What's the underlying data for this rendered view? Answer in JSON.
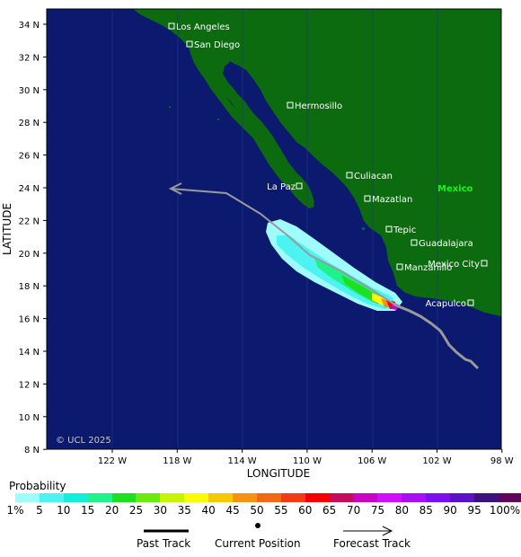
{
  "map": {
    "credit": "© UCL 2025",
    "country_label": "Mexico",
    "x_axis_title": "LONGITUDE",
    "y_axis_title": "LATITUDE",
    "lon_ticks": [
      "122 W",
      "118 W",
      "114 W",
      "110 W",
      "106 W",
      "102 W",
      "98 W"
    ],
    "lat_ticks": [
      "34 N",
      "32 N",
      "30 N",
      "28 N",
      "26 N",
      "24 N",
      "22 N",
      "20 N",
      "18 N",
      "16 N",
      "14 N",
      "12 N",
      "10 N",
      "8 N"
    ],
    "cities": [
      {
        "name": "Los Angeles"
      },
      {
        "name": "San Diego"
      },
      {
        "name": "Hermosillo"
      },
      {
        "name": "Culiacan"
      },
      {
        "name": "La Paz"
      },
      {
        "name": "Mazatlan"
      },
      {
        "name": "Tepic"
      },
      {
        "name": "Guadalajara"
      },
      {
        "name": "Mexico City"
      },
      {
        "name": "Manzanillo"
      },
      {
        "name": "Acapulco"
      }
    ],
    "colors": {
      "ocean": "#0b1a6e",
      "land": "#0d6b0f",
      "past_track": "#9a9a9a",
      "grid": "#3a4b96"
    }
  },
  "legend": {
    "title": "Probability",
    "colors": [
      "#9ffcfb",
      "#4df3f0",
      "#13eddb",
      "#1ef28a",
      "#1fe01f",
      "#6bea10",
      "#c6f404",
      "#fbfb04",
      "#f6c806",
      "#f49212",
      "#f36814",
      "#f33b13",
      "#f50000",
      "#c50b5b",
      "#c904c3",
      "#d20ffc",
      "#a80ff5",
      "#7d0ef0",
      "#5c11c8",
      "#3d127f",
      "#61055c"
    ],
    "labels": [
      "1%",
      "5",
      "10",
      "15",
      "20",
      "25",
      "30",
      "35",
      "40",
      "45",
      "50",
      "55",
      "60",
      "65",
      "70",
      "75",
      "80",
      "85",
      "90",
      "95",
      "100%"
    ]
  },
  "key": {
    "past_track": "Past Track",
    "current_position": "Current Position",
    "forecast_track": "Forecast Track"
  }
}
